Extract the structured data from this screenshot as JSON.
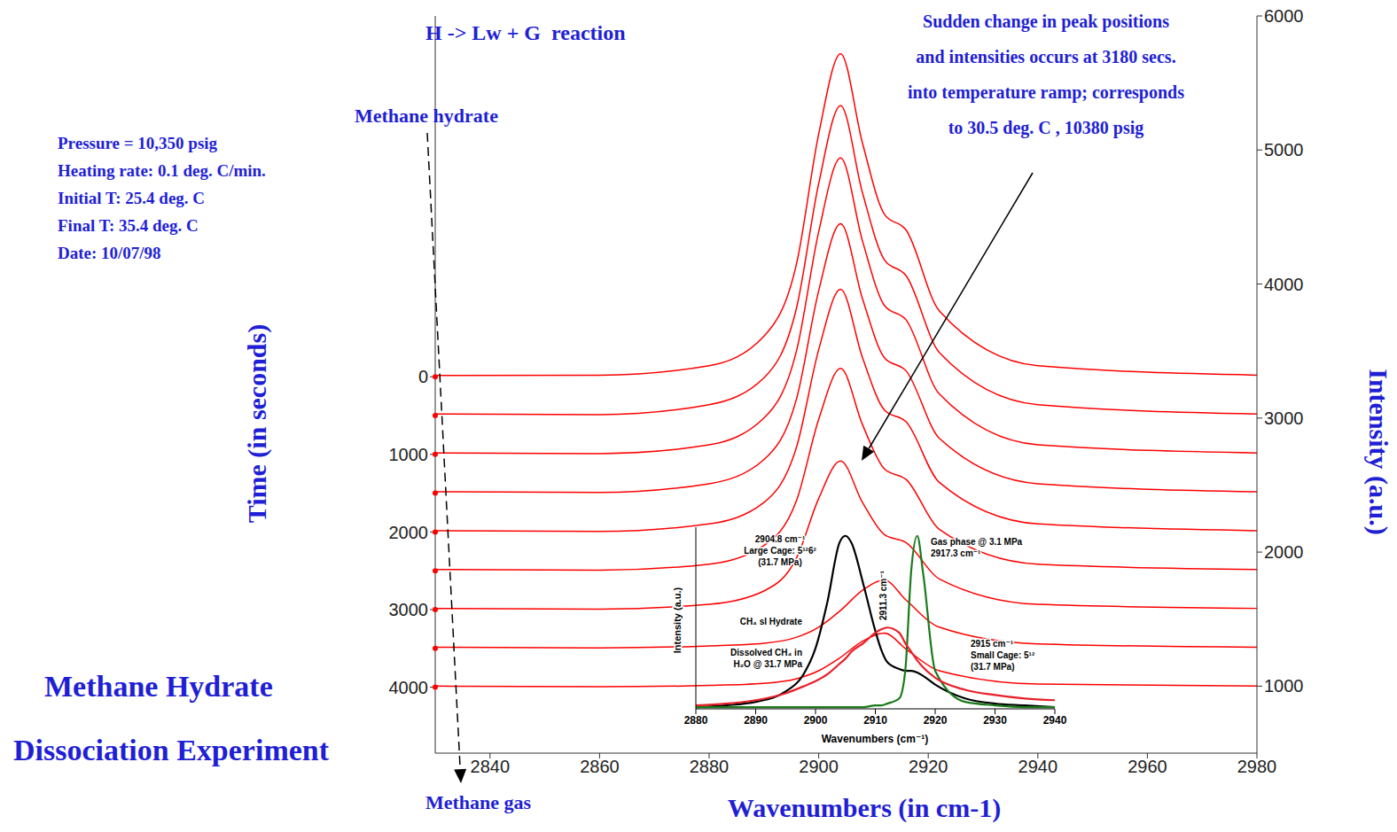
{
  "chart_data": [
    {
      "type": "line",
      "title": [
        "Methane Hydrate",
        "Dissociation Experiment"
      ],
      "subtitle": "H -> Lw + G  reaction",
      "x_label": "Wavenumbers (in cm-1)",
      "y_label": "Intensity (a.u.)",
      "y2_label": "Time (in seconds)",
      "annotations": {
        "conditions": [
          "Pressure = 10,350 psig",
          "Heating rate: 0.1 deg. C/min.",
          "Initial T: 25.4 deg. C",
          "Final T: 35.4 deg. C",
          "Date: 10/07/98"
        ],
        "note": [
          "Sudden change in peak positions",
          "and intensities occurs at 3180 secs.",
          "into temperature ramp; corresponds",
          "to 30.5 deg. C , 10380 psig"
        ],
        "start": "Methane hydrate",
        "end": "Methane gas"
      },
      "x": [
        2830,
        2860,
        2880,
        2890,
        2896,
        2900,
        2904,
        2908,
        2912,
        2916,
        2922,
        2940,
        2980
      ],
      "series": [
        {
          "time": 0,
          "color": "#ff0000",
          "values": [
            3318,
            3320,
            3390,
            3610,
            4160,
            5120,
            5718,
            5050,
            4520,
            4400,
            3800,
            3390,
            3320
          ]
        },
        {
          "time": 500,
          "color": "#ff0000",
          "values": [
            3030,
            3025,
            3100,
            3300,
            3830,
            4750,
            5330,
            4680,
            4180,
            4060,
            3490,
            3100,
            3030
          ]
        },
        {
          "time": 1000,
          "color": "#ff0000",
          "values": [
            2740,
            2735,
            2800,
            3000,
            3510,
            4390,
            4940,
            4320,
            3840,
            3730,
            3180,
            2800,
            2740
          ]
        },
        {
          "time": 1500,
          "color": "#ff0000",
          "values": [
            2450,
            2445,
            2510,
            2690,
            3150,
            3950,
            4450,
            3890,
            3450,
            3350,
            2850,
            2510,
            2450
          ]
        },
        {
          "time": 2000,
          "color": "#ff0000",
          "values": [
            2160,
            2155,
            2210,
            2370,
            2790,
            3510,
            3960,
            3450,
            3060,
            2970,
            2520,
            2210,
            2160
          ]
        },
        {
          "time": 2500,
          "color": "#ff0000",
          "values": [
            1870,
            1865,
            1910,
            2050,
            2390,
            2990,
            3370,
            2950,
            2620,
            2540,
            2170,
            1910,
            1870
          ]
        },
        {
          "time": 3000,
          "color": "#ff0000",
          "values": [
            1580,
            1575,
            1610,
            1710,
            1960,
            2400,
            2680,
            2370,
            2130,
            2070,
            1800,
            1610,
            1580
          ]
        },
        {
          "time": 3500,
          "color": "#ff0000",
          "values": [
            1290,
            1285,
            1300,
            1320,
            1365,
            1440,
            1565,
            1715,
            1790,
            1640,
            1440,
            1315,
            1290
          ]
        },
        {
          "time": 4000,
          "color": "#ff0000",
          "values": [
            1000,
            995,
            1005,
            1020,
            1055,
            1115,
            1215,
            1335,
            1395,
            1275,
            1115,
            1015,
            1000
          ]
        }
      ],
      "xlim": [
        2830,
        2980
      ],
      "xticks": [
        2840,
        2860,
        2880,
        2900,
        2920,
        2940,
        2960,
        2980
      ],
      "ylim": [
        500,
        6000
      ],
      "yticks": [
        1000,
        2000,
        3000,
        4000,
        5000,
        6000
      ],
      "y2lim": [
        4850,
        -4650
      ],
      "y2ticks": [
        0,
        1000,
        2000,
        3000,
        4000
      ],
      "grid": false
    },
    {
      "type": "line",
      "x_label": "Wavenumbers (cm⁻¹)",
      "y_label": "Intensity (a.u.)",
      "annotations": {
        "large_cage": [
          "2904.8 cm⁻¹",
          "Large Cage: 5¹²6²",
          "(31.7 MPa)"
        ],
        "gas": [
          "Gas phase @ 3.1 MPa",
          "2917.3 cm⁻¹"
        ],
        "dissolved_peak": "2911.3 cm⁻¹",
        "hydrate": "CH₄ sI Hydrate",
        "dissolved": [
          "Dissolved CH₄ in",
          "H₂O @ 31.7 MPa"
        ],
        "small_cage": [
          "2915 cm⁻¹",
          "Small Cage: 5¹²",
          "(31.7 MPa)"
        ]
      },
      "x": [
        2880,
        2885,
        2890,
        2895,
        2898,
        2900,
        2902,
        2904,
        2905,
        2906,
        2908,
        2910,
        2911,
        2912,
        2914,
        2915,
        2916,
        2917,
        2918,
        2920,
        2925,
        2930,
        2935,
        2940
      ],
      "series": [
        {
          "color": "#000000",
          "values": [
            1,
            2,
            4,
            10,
            20,
            35,
            62,
            96,
            100,
            96,
            72,
            45,
            34,
            27,
            23,
            22,
            22,
            21,
            19,
            14,
            6,
            3,
            2,
            1
          ]
        },
        {
          "color": "#1a7a1a",
          "values": [
            1,
            1,
            1,
            1,
            1,
            1,
            1,
            1,
            1,
            1,
            1,
            2,
            2,
            3,
            6,
            22,
            80,
            100,
            78,
            22,
            4,
            2,
            1,
            1
          ]
        },
        {
          "color": "#e8202a",
          "values": [
            2,
            3,
            5,
            9,
            13,
            16,
            20,
            26,
            29,
            33,
            38,
            44,
            46,
            47,
            44,
            38,
            33,
            28,
            24,
            18,
            11,
            8,
            6,
            5
          ]
        }
      ],
      "xlim": [
        2880,
        2940
      ],
      "xticks": [
        2880,
        2890,
        2900,
        2910,
        2920,
        2930,
        2940
      ],
      "ylim": [
        0,
        105
      ],
      "tick_labels": "x",
      "grid": false
    }
  ]
}
